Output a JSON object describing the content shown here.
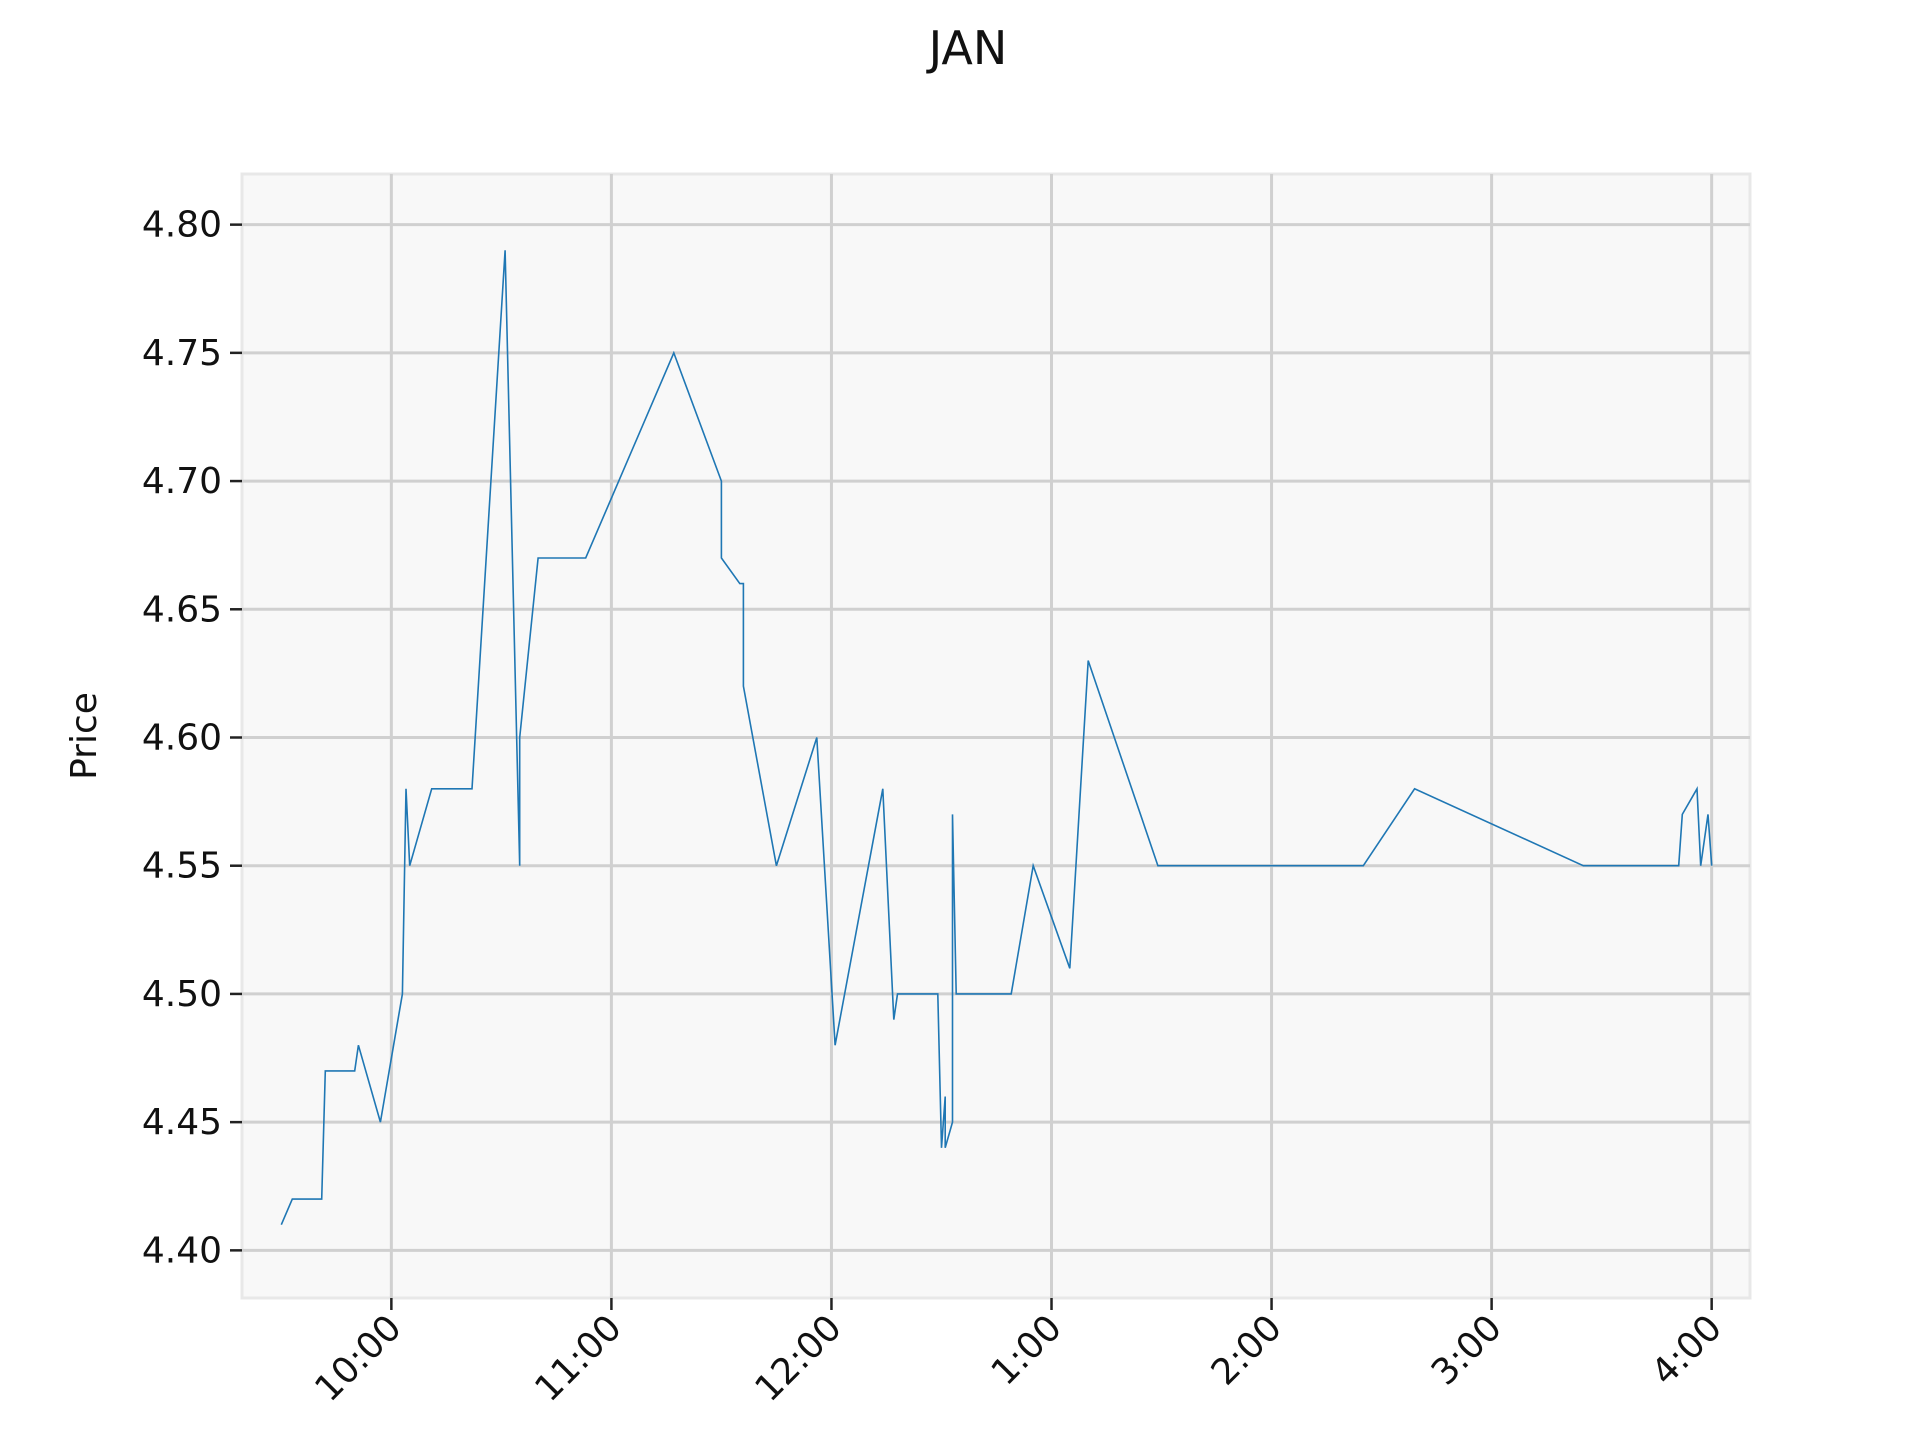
{
  "chart_data": {
    "type": "line",
    "title": "JAN",
    "xlabel": "",
    "ylabel": "Price",
    "x_ticks": [
      {
        "time": "10:00",
        "label": "10:00"
      },
      {
        "time": "11:00",
        "label": "11:00"
      },
      {
        "time": "12:00",
        "label": "12:00"
      },
      {
        "time": "13:00",
        "label": "1:00"
      },
      {
        "time": "14:00",
        "label": "2:00"
      },
      {
        "time": "15:00",
        "label": "3:00"
      },
      {
        "time": "16:00",
        "label": "4:00"
      }
    ],
    "y_ticks": [
      "4.40",
      "4.45",
      "4.50",
      "4.55",
      "4.60",
      "4.65",
      "4.70",
      "4.75",
      "4.80"
    ],
    "xlim": [
      "09:25",
      "16:05"
    ],
    "ylim": [
      4.39,
      4.81
    ],
    "grid": true,
    "legend": "none",
    "colors": {
      "line": "#1f77b4",
      "plot_background": "#f8f8f8",
      "grid": "#d0d0d0",
      "frame": "#e8e8e8"
    },
    "series": [
      {
        "points": [
          [
            "09:30",
            4.41
          ],
          [
            "09:33",
            4.42
          ],
          [
            "09:37",
            4.42
          ],
          [
            "09:41",
            4.42
          ],
          [
            "09:42",
            4.47
          ],
          [
            "09:47",
            4.47
          ],
          [
            "09:50",
            4.47
          ],
          [
            "09:51",
            4.48
          ],
          [
            "09:57",
            4.45
          ],
          [
            "10:03",
            4.5
          ],
          [
            "10:04",
            4.58
          ],
          [
            "10:05",
            4.55
          ],
          [
            "10:11",
            4.58
          ],
          [
            "10:20",
            4.58
          ],
          [
            "10:22",
            4.58
          ],
          [
            "10:31",
            4.79
          ],
          [
            "10:35",
            4.55
          ],
          [
            "10:35",
            4.6
          ],
          [
            "10:40",
            4.67
          ],
          [
            "10:48",
            4.67
          ],
          [
            "10:53",
            4.67
          ],
          [
            "11:17",
            4.75
          ],
          [
            "11:30",
            4.7
          ],
          [
            "11:30",
            4.67
          ],
          [
            "11:35",
            4.66
          ],
          [
            "11:36",
            4.66
          ],
          [
            "11:36",
            4.62
          ],
          [
            "11:45",
            4.55
          ],
          [
            "11:56",
            4.6
          ],
          [
            "12:01",
            4.48
          ],
          [
            "12:14",
            4.58
          ],
          [
            "12:17",
            4.49
          ],
          [
            "12:18",
            4.5
          ],
          [
            "12:25",
            4.5
          ],
          [
            "12:29",
            4.5
          ],
          [
            "12:30",
            4.44
          ],
          [
            "12:31",
            4.46
          ],
          [
            "12:31",
            4.44
          ],
          [
            "12:33",
            4.45
          ],
          [
            "12:33",
            4.57
          ],
          [
            "12:34",
            4.5
          ],
          [
            "12:40",
            4.5
          ],
          [
            "12:49",
            4.5
          ],
          [
            "12:55",
            4.55
          ],
          [
            "13:05",
            4.51
          ],
          [
            "13:10",
            4.63
          ],
          [
            "13:29",
            4.55
          ],
          [
            "13:50",
            4.55
          ],
          [
            "14:25",
            4.55
          ],
          [
            "14:39",
            4.58
          ],
          [
            "15:25",
            4.55
          ],
          [
            "15:51",
            4.55
          ],
          [
            "15:52",
            4.57
          ],
          [
            "15:56",
            4.58
          ],
          [
            "15:57",
            4.55
          ],
          [
            "15:59",
            4.57
          ],
          [
            "16:00",
            4.55
          ]
        ]
      }
    ]
  }
}
